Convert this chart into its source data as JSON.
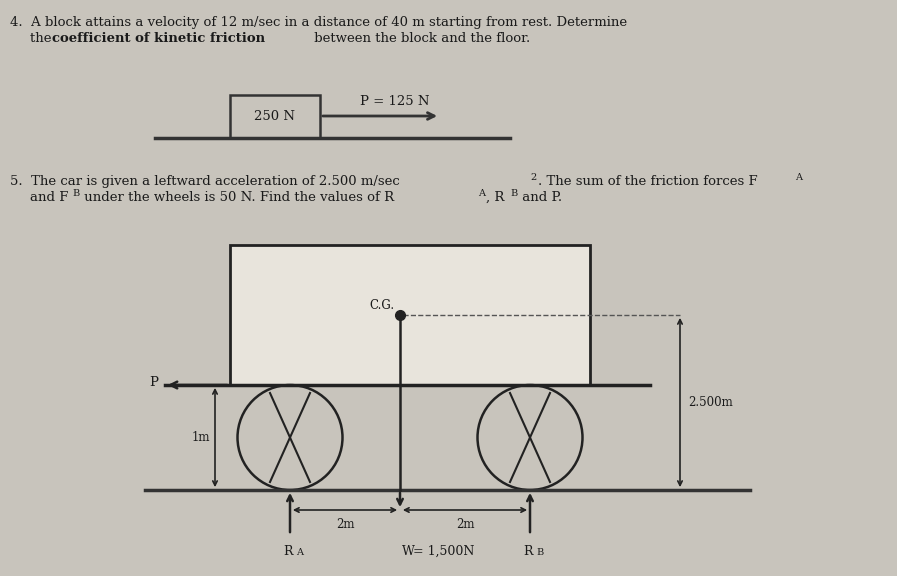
{
  "bg_color": "#c8c4bc",
  "text_color": "#1a1a1a",
  "block_label": "250 N",
  "arrow_label": "P = 125 N",
  "label_CG": "C.G.",
  "label_P": "P",
  "label_1m": "1m",
  "label_2m_left": "2m",
  "label_2m_right": "2m",
  "label_height": "2.500m",
  "label_RA": "R",
  "label_RA_sub": "A",
  "label_W": "W = 1,500N",
  "label_RB": "R",
  "label_RB_sub": "B"
}
